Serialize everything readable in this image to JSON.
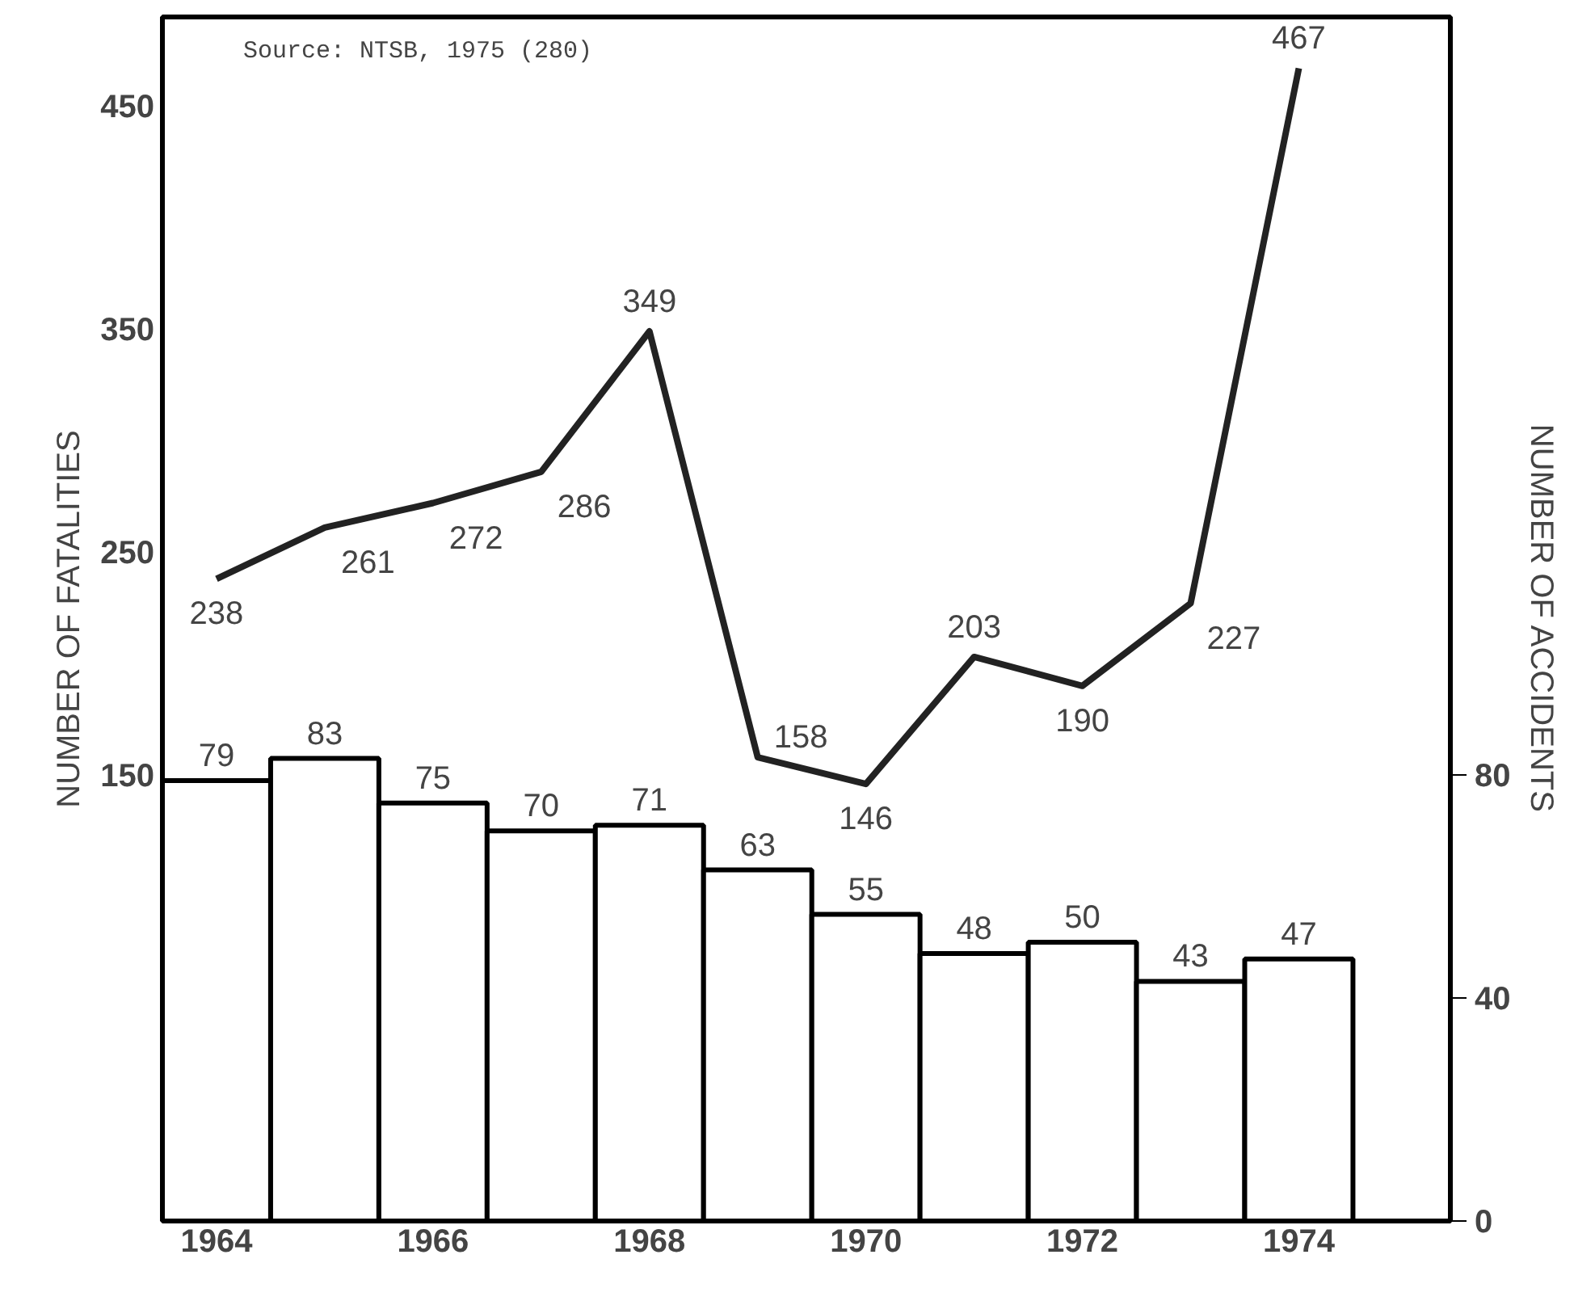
{
  "chart_data": {
    "type": "bar",
    "ylabel": "NUMBER OF FATALITIES",
    "y2label": "NUMBER OF ACCIDENTS",
    "annotations": [
      "Source:  NTSB, 1975 (280)"
    ],
    "x": [
      1964,
      1965,
      1966,
      1967,
      1968,
      1969,
      1970,
      1971,
      1972,
      1973,
      1974
    ],
    "xlim": [
      1963.5,
      1975.4
    ],
    "xticks": [
      1964,
      1966,
      1968,
      1970,
      1972,
      1974
    ],
    "ylim": [
      -50,
      490
    ],
    "yticks": [
      150,
      250,
      350,
      450
    ],
    "y2lim": [
      0,
      216
    ],
    "y2ticks": [
      0,
      40,
      80
    ],
    "series": [
      {
        "axis": "y2",
        "color": "#ffffff",
        "values": [
          79,
          83,
          75,
          70,
          71,
          63,
          55,
          48,
          50,
          43,
          47
        ]
      },
      {
        "type": "line",
        "color": "#222222",
        "values": [
          238,
          261,
          272,
          286,
          349,
          158,
          146,
          203,
          190,
          227,
          467
        ]
      }
    ],
    "data_labels": true,
    "grid": false,
    "marker": "none",
    "line_style": "solid"
  }
}
